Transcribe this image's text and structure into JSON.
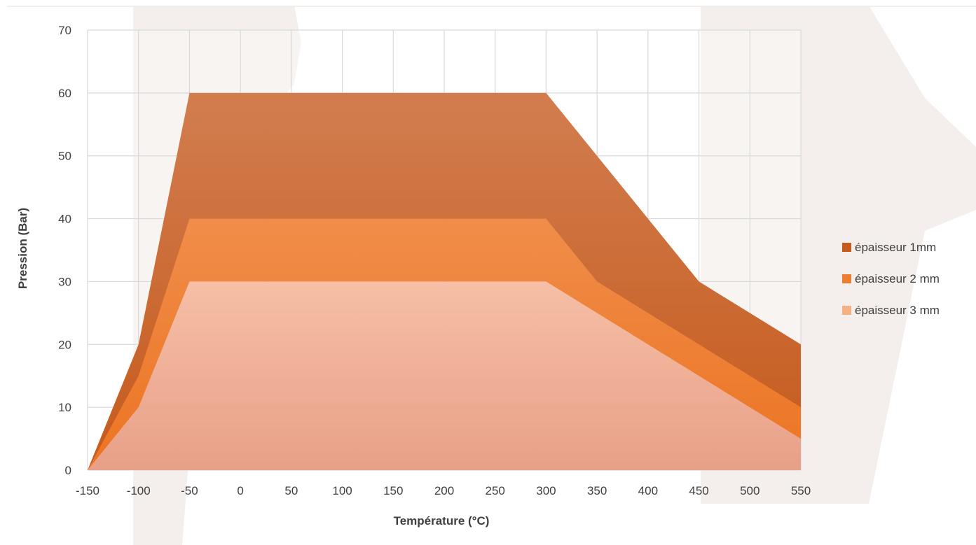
{
  "chart_data": {
    "type": "area",
    "xlabel": "Température (°C)",
    "ylabel": "Pression (Bar)",
    "xlim": [
      -150,
      550
    ],
    "ylim": [
      0,
      70
    ],
    "x_ticks": [
      -150,
      -100,
      -50,
      0,
      50,
      100,
      150,
      200,
      250,
      300,
      350,
      400,
      450,
      500,
      550
    ],
    "y_ticks": [
      0,
      10,
      20,
      30,
      40,
      50,
      60,
      70
    ],
    "x": [
      -150,
      -100,
      -50,
      300,
      350,
      450,
      550
    ],
    "grid": true,
    "legend_position": "right",
    "series": [
      {
        "name": "épaisseur 1mm",
        "color": "#c55a1c",
        "values": [
          0,
          20,
          60,
          60,
          50,
          30,
          20
        ]
      },
      {
        "name": "épaisseur 2 mm",
        "color": "#ed7d31",
        "values": [
          0,
          15,
          40,
          40,
          30,
          20,
          10
        ]
      },
      {
        "name": "épaisseur 3 mm",
        "color": "#f4b183",
        "values": [
          0,
          10,
          30,
          30,
          25,
          15,
          5
        ]
      }
    ]
  }
}
